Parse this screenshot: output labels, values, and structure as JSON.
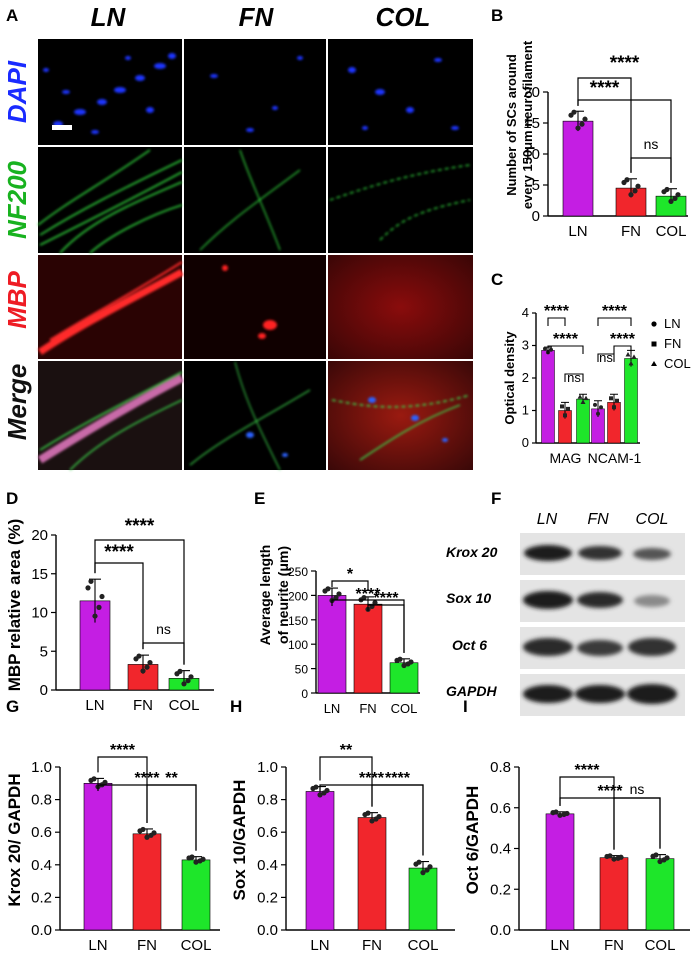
{
  "colors": {
    "LN": "#c41ee3",
    "FN": "#f1262c",
    "COL": "#1ee62a"
  },
  "panelA": {
    "label": "A",
    "columns": [
      "LN",
      "FN",
      "COL"
    ],
    "rows": [
      "DAPI",
      "NF200",
      "MBP",
      "Merge"
    ],
    "rowColors": [
      "#1a2bff",
      "#18b21f",
      "#ee1c24",
      "#111111"
    ]
  },
  "panelB": {
    "label": "B",
    "ylabel1": "Number of SCs around",
    "ylabel2": "every 150μm neurofilament"
  },
  "panelC": {
    "label": "C",
    "ylabel": "Optical density"
  },
  "panelD": {
    "label": "D",
    "ylabel": "MBP relative area (%)"
  },
  "panelE": {
    "label": "E",
    "ylabel1": "Average length",
    "ylabel2": "of neurite (μm)"
  },
  "panelF": {
    "label": "F",
    "lanes": [
      "LN",
      "FN",
      "COL"
    ],
    "bands": [
      "Krox 20",
      "Sox 10",
      "Oct 6",
      "GAPDH"
    ]
  },
  "panelG": {
    "label": "G",
    "ylabel": "Krox 20/ GAPDH"
  },
  "panelH": {
    "label": "H",
    "ylabel": "Sox 10/GAPDH"
  },
  "panelI": {
    "label": "I",
    "ylabel": "Oct 6/GAPDH"
  },
  "chart_data": [
    {
      "id": "B",
      "type": "bar",
      "categories": [
        "LN",
        "FN",
        "COL"
      ],
      "values": [
        15.3,
        4.5,
        3.2
      ],
      "errors": [
        1.6,
        1.5,
        1.2
      ],
      "ylim": [
        0,
        20
      ],
      "yticks": [
        0,
        5,
        10,
        15,
        20
      ],
      "ylabel": "Number of SCs around every 150μm neurofilament",
      "comparisons": [
        {
          "pair": [
            "LN",
            "FN"
          ],
          "label": "****"
        },
        {
          "pair": [
            "LN",
            "COL"
          ],
          "label": "****"
        },
        {
          "pair": [
            "FN",
            "COL"
          ],
          "label": "ns"
        }
      ]
    },
    {
      "id": "C",
      "type": "bar",
      "categories": [
        "MAG",
        "NCAM-1"
      ],
      "series": [
        {
          "name": "LN",
          "values": [
            2.85,
            1.05
          ]
        },
        {
          "name": "FN",
          "values": [
            1.0,
            1.25
          ]
        },
        {
          "name": "COL",
          "values": [
            1.35,
            2.6
          ]
        }
      ],
      "errors": [
        [
          0.1,
          0.25
        ],
        [
          0.25,
          0.25
        ],
        [
          0.15,
          0.25
        ]
      ],
      "ylim": [
        0,
        4
      ],
      "yticks": [
        0,
        1,
        2,
        3,
        4
      ],
      "ylabel": "Optical density",
      "legend": "right",
      "comparisons": [
        {
          "group": "MAG",
          "pair": [
            "LN",
            "FN"
          ],
          "label": "****"
        },
        {
          "group": "MAG",
          "pair": [
            "LN",
            "COL"
          ],
          "label": "****"
        },
        {
          "group": "MAG",
          "pair": [
            "FN",
            "COL"
          ],
          "label": "ns"
        },
        {
          "group": "NCAM-1",
          "pair": [
            "LN",
            "FN"
          ],
          "label": "ns"
        },
        {
          "group": "NCAM-1",
          "pair": [
            "LN",
            "COL"
          ],
          "label": "****"
        },
        {
          "group": "NCAM-1",
          "pair": [
            "FN",
            "COL"
          ],
          "label": "****"
        }
      ]
    },
    {
      "id": "D",
      "type": "bar",
      "categories": [
        "LN",
        "FN",
        "COL"
      ],
      "values": [
        11.5,
        3.3,
        1.5
      ],
      "errors": [
        2.8,
        1.2,
        1.0
      ],
      "ylim": [
        0,
        20
      ],
      "yticks": [
        0,
        5,
        10,
        15,
        20
      ],
      "ylabel": "MBP relative area (%)",
      "comparisons": [
        {
          "pair": [
            "LN",
            "FN"
          ],
          "label": "****"
        },
        {
          "pair": [
            "LN",
            "COL"
          ],
          "label": "****"
        },
        {
          "pair": [
            "FN",
            "COL"
          ],
          "label": "ns"
        }
      ]
    },
    {
      "id": "E",
      "type": "bar",
      "categories": [
        "LN",
        "FN",
        "COL"
      ],
      "values": [
        200,
        182,
        62
      ],
      "errors": [
        15,
        15,
        8
      ],
      "ylim": [
        0,
        250
      ],
      "yticks": [
        0,
        50,
        100,
        150,
        200,
        250
      ],
      "ylabel": "Average length of neurite (μm)",
      "comparisons": [
        {
          "pair": [
            "LN",
            "FN"
          ],
          "label": "*"
        },
        {
          "pair": [
            "LN",
            "COL"
          ],
          "label": "****"
        },
        {
          "pair": [
            "FN",
            "COL"
          ],
          "label": "****"
        }
      ]
    },
    {
      "id": "G",
      "type": "bar",
      "categories": [
        "LN",
        "FN",
        "COL"
      ],
      "values": [
        0.9,
        0.59,
        0.43
      ],
      "errors": [
        0.03,
        0.03,
        0.02
      ],
      "ylim": [
        0,
        1.0
      ],
      "yticks": [
        0.0,
        0.2,
        0.4,
        0.6,
        0.8,
        1.0
      ],
      "ylabel": "Krox 20/ GAPDH",
      "comparisons": [
        {
          "pair": [
            "LN",
            "FN"
          ],
          "label": "****"
        },
        {
          "pair": [
            "LN",
            "COL"
          ],
          "label": "****"
        },
        {
          "pair": [
            "FN",
            "COL"
          ],
          "label": "**"
        }
      ]
    },
    {
      "id": "H",
      "type": "bar",
      "categories": [
        "LN",
        "FN",
        "COL"
      ],
      "values": [
        0.85,
        0.69,
        0.38
      ],
      "errors": [
        0.03,
        0.03,
        0.04
      ],
      "ylim": [
        0,
        1.0
      ],
      "yticks": [
        0.0,
        0.2,
        0.4,
        0.6,
        0.8,
        1.0
      ],
      "ylabel": "Sox 10/GAPDH",
      "comparisons": [
        {
          "pair": [
            "LN",
            "FN"
          ],
          "label": "**"
        },
        {
          "pair": [
            "LN",
            "COL"
          ],
          "label": "****"
        },
        {
          "pair": [
            "FN",
            "COL"
          ],
          "label": "****"
        }
      ]
    },
    {
      "id": "I",
      "type": "bar",
      "categories": [
        "LN",
        "FN",
        "COL"
      ],
      "values": [
        0.57,
        0.355,
        0.35
      ],
      "errors": [
        0.01,
        0.01,
        0.02
      ],
      "ylim": [
        0,
        0.8
      ],
      "yticks": [
        0.0,
        0.2,
        0.4,
        0.6,
        0.8
      ],
      "ylabel": "Oct 6/GAPDH",
      "comparisons": [
        {
          "pair": [
            "LN",
            "FN"
          ],
          "label": "****"
        },
        {
          "pair": [
            "LN",
            "COL"
          ],
          "label": "****"
        },
        {
          "pair": [
            "FN",
            "COL"
          ],
          "label": "ns"
        }
      ]
    }
  ]
}
